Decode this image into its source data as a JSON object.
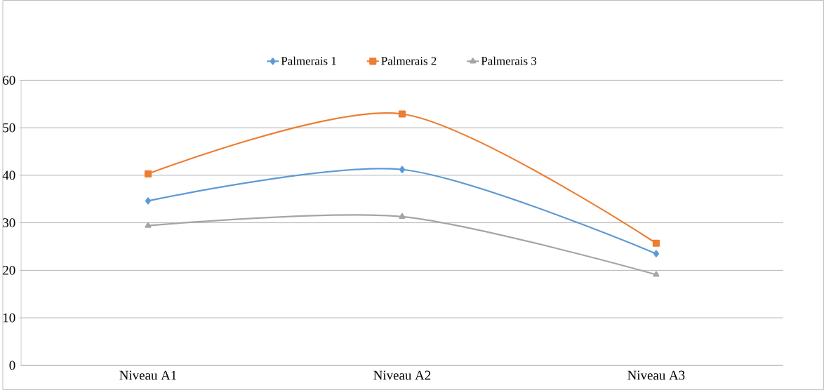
{
  "chart_data": {
    "type": "line",
    "categories": [
      "Niveau A1",
      "Niveau A2",
      "Niveau A3"
    ],
    "series": [
      {
        "name": "Palmerais 1",
        "color": "#5b9bd5",
        "marker": "diamond",
        "values": [
          34.6,
          41.2,
          23.5
        ]
      },
      {
        "name": "Palmerais 2",
        "color": "#ed7d31",
        "marker": "square",
        "values": [
          40.3,
          52.9,
          25.7
        ]
      },
      {
        "name": "Palmerais 3",
        "color": "#a5a5a5",
        "marker": "triangle",
        "values": [
          29.4,
          31.3,
          19.1
        ]
      }
    ],
    "ylim": [
      0,
      60
    ],
    "yticks": [
      0,
      10,
      20,
      30,
      40,
      50,
      60
    ],
    "grid": "y",
    "legend": "top"
  }
}
